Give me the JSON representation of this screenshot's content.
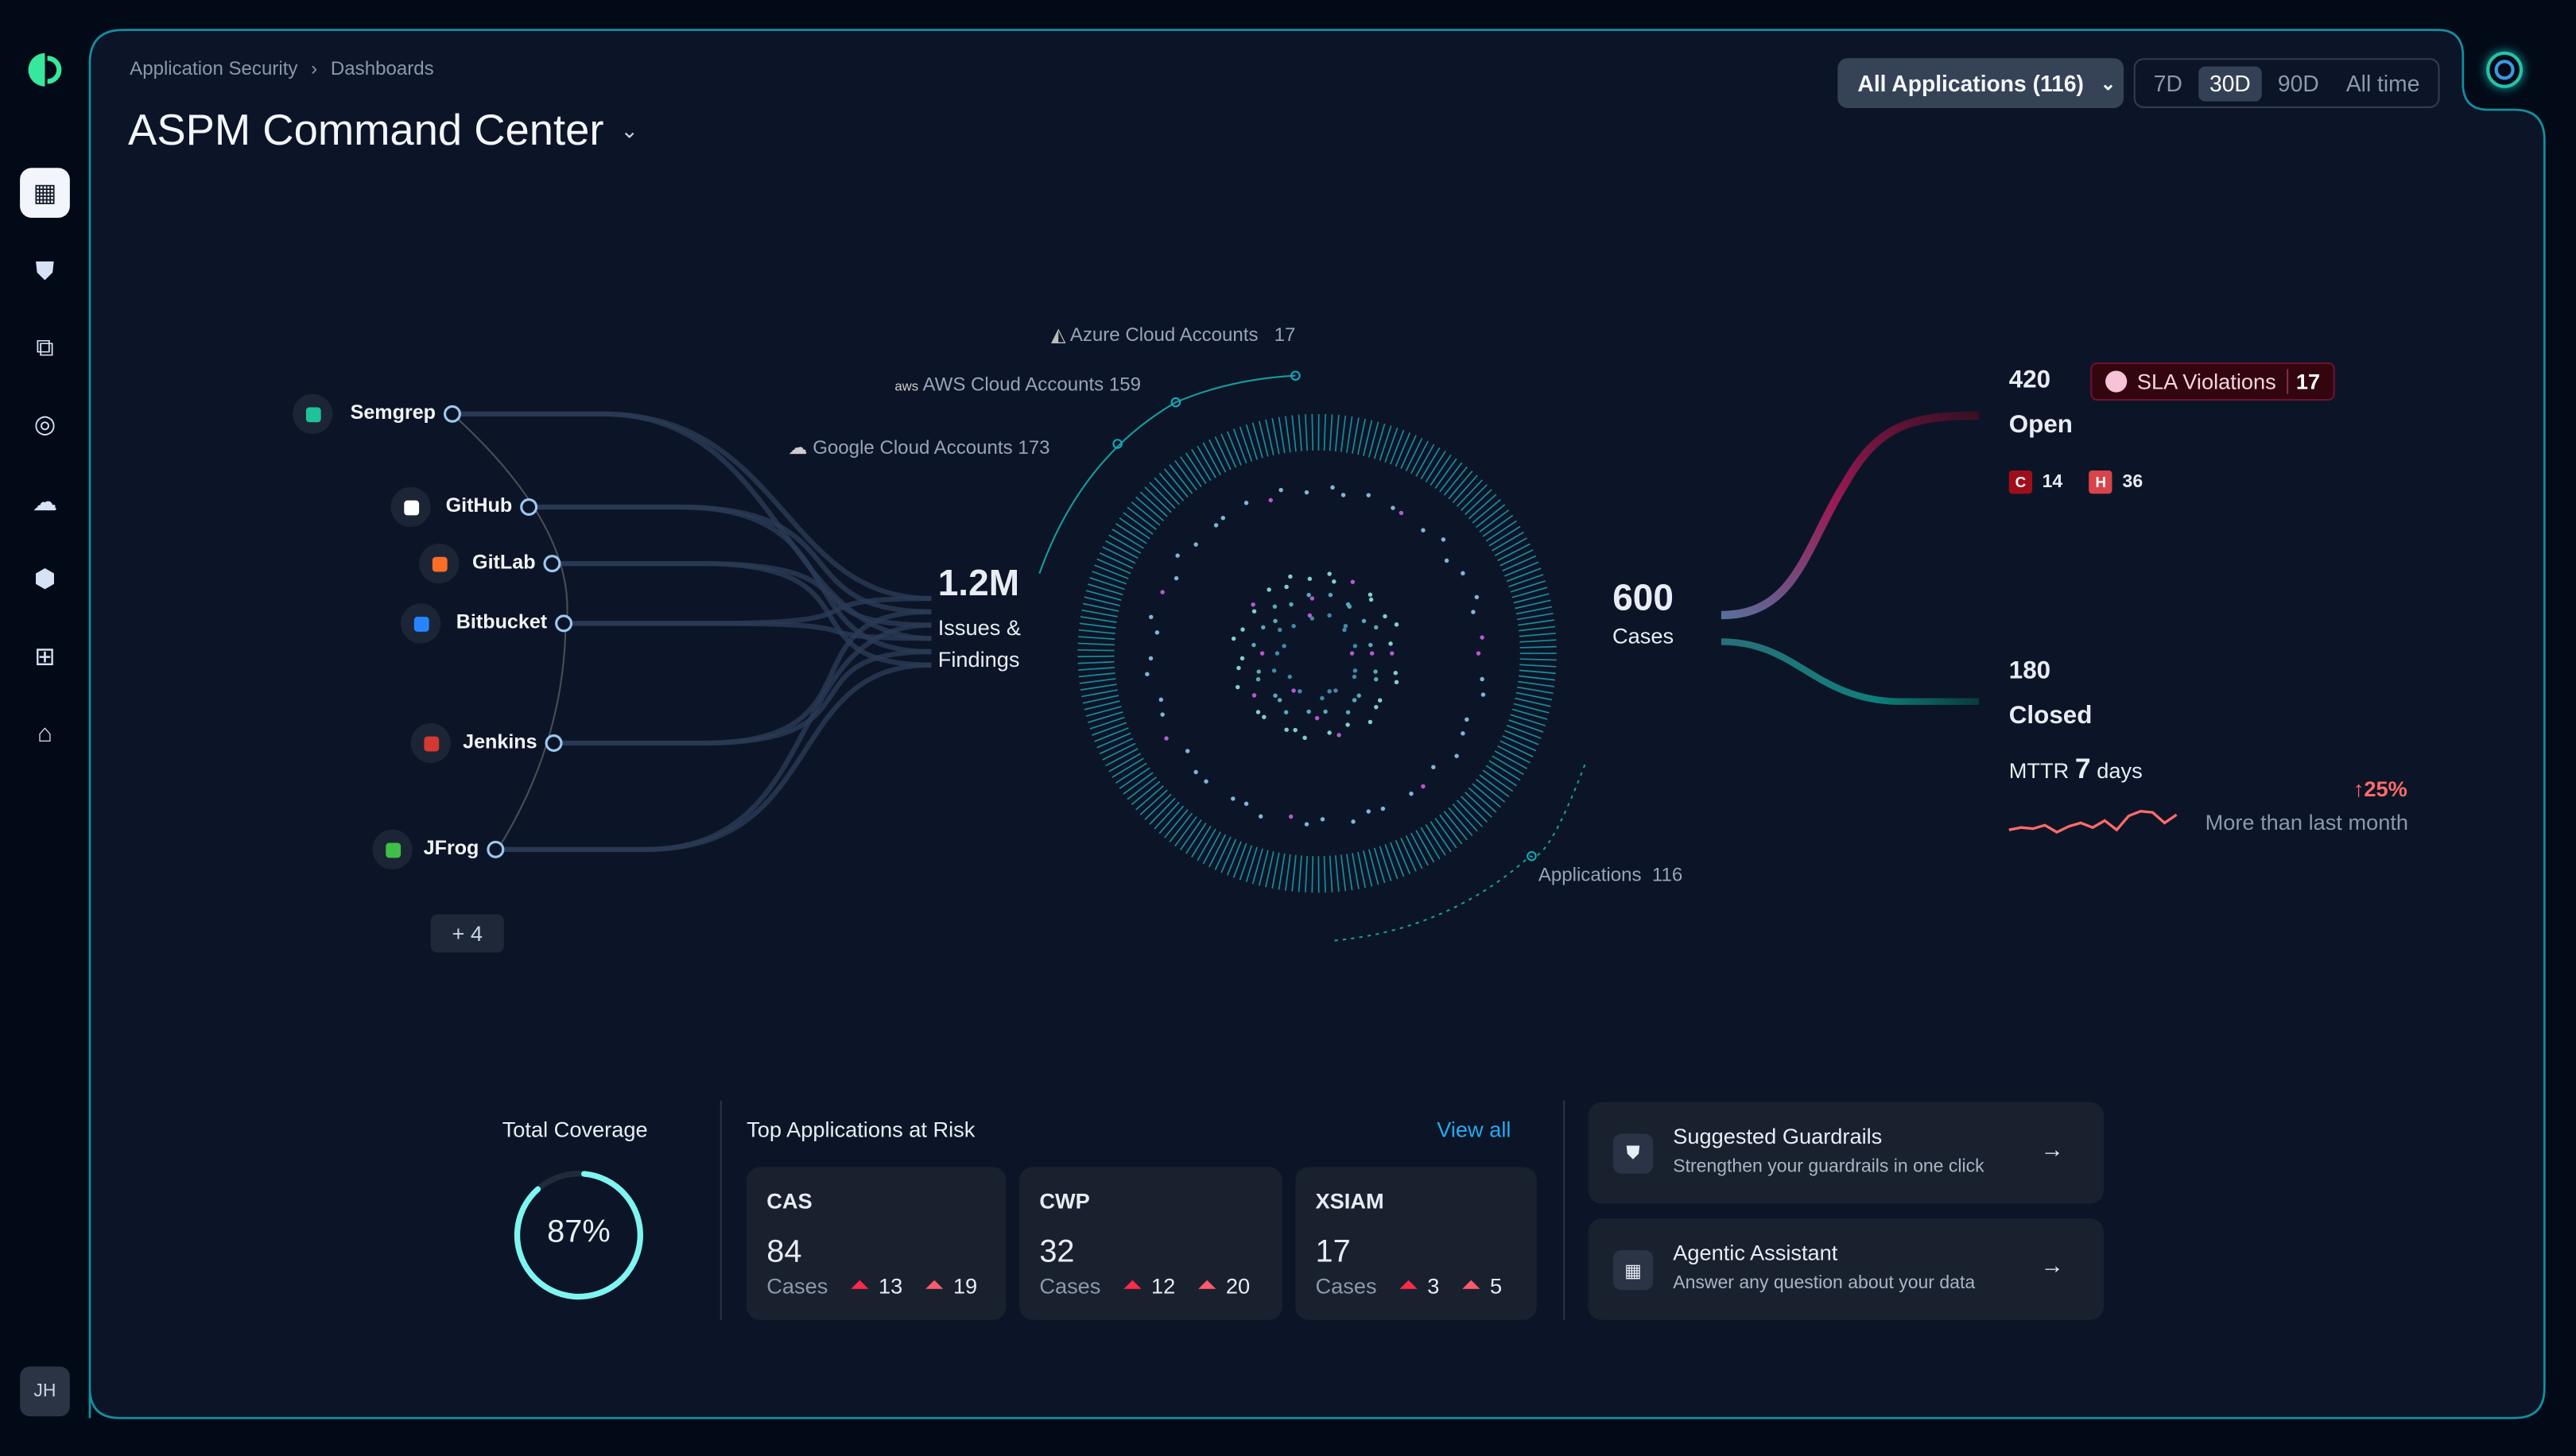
{
  "sidebar": {
    "items": [
      {
        "name": "dashboard",
        "icon": "grid-icon",
        "active": true
      },
      {
        "name": "security",
        "icon": "shield-icon"
      },
      {
        "name": "hierarchy",
        "icon": "hierarchy-icon"
      },
      {
        "name": "fingerprint",
        "icon": "fingerprint-icon"
      },
      {
        "name": "cloud",
        "icon": "cloud-icon"
      },
      {
        "name": "package",
        "icon": "box-icon"
      },
      {
        "name": "apps",
        "icon": "apps-add-icon"
      },
      {
        "name": "store",
        "icon": "store-icon"
      }
    ],
    "user_initials": "JH"
  },
  "breadcrumb": [
    "Application Security",
    "Dashboards"
  ],
  "header": {
    "title": "ASPM Command Center",
    "app_filter": "All Applications (116)",
    "time_ranges": [
      "7D",
      "30D",
      "90D",
      "All time"
    ],
    "selected_range": "30D"
  },
  "integrations": [
    {
      "name": "Semgrep",
      "color": "#1fc39a"
    },
    {
      "name": "GitHub",
      "color": "#ffffff"
    },
    {
      "name": "GitLab",
      "color": "#fc6d26"
    },
    {
      "name": "Bitbucket",
      "color": "#2684ff"
    },
    {
      "name": "Jenkins",
      "color": "#d33833"
    },
    {
      "name": "JFrog",
      "color": "#40be46"
    }
  ],
  "more_integrations": "+ 4",
  "findings": {
    "value": "1.2M",
    "label": "Issues & Findings"
  },
  "clouds": [
    {
      "label": "Azure Cloud Accounts",
      "count": "17"
    },
    {
      "label": "AWS Cloud Accounts",
      "count": "159"
    },
    {
      "label": "Google Cloud Accounts",
      "count": "173"
    }
  ],
  "applications": {
    "label": "Applications",
    "count": "116"
  },
  "cases": {
    "value": "600",
    "label": "Cases"
  },
  "open": {
    "value": "420",
    "label": "Open",
    "sla_label": "SLA Violations",
    "sla_count": "17",
    "critical": "14",
    "high": "36",
    "critical_label": "C",
    "high_label": "H"
  },
  "closed": {
    "value": "180",
    "label": "Closed",
    "mttr_label": "MTTR",
    "mttr_value": "7",
    "mttr_unit": "days",
    "change": "25%",
    "change_label": "More than last month"
  },
  "coverage": {
    "title": "Total Coverage",
    "value": "87%",
    "percent": 87
  },
  "top_apps": {
    "title": "Top Applications at Risk",
    "view_all": "View all",
    "apps": [
      {
        "name": "CAS",
        "cases": "84",
        "cases_label": "Cases",
        "critical": "13",
        "high": "19"
      },
      {
        "name": "CWP",
        "cases": "32",
        "cases_label": "Cases",
        "critical": "12",
        "high": "20"
      },
      {
        "name": "XSIAM",
        "cases": "17",
        "cases_label": "Cases",
        "critical": "3",
        "high": "5"
      }
    ]
  },
  "actions": [
    {
      "title": "Suggested Guardrails",
      "subtitle": "Strengthen your guardrails in one click",
      "icon": "shield-icon"
    },
    {
      "title": "Agentic Assistant",
      "subtitle": "Answer any question about your data",
      "icon": "grid-icon"
    }
  ],
  "colors": {
    "accent": "#19b7a5",
    "open": "#c0185a",
    "closed": "#0f7f7a",
    "critical": "#a10e1b",
    "high": "#d9434a",
    "link": "#27a9f0",
    "trend": "#ff6b6b"
  }
}
